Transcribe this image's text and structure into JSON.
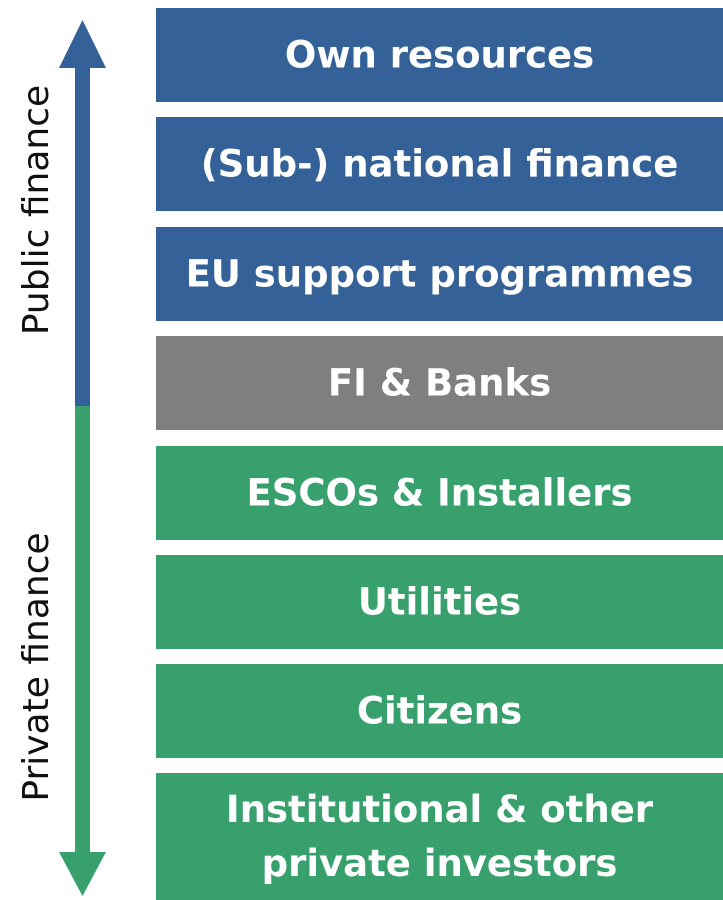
{
  "axis_labels": {
    "public": "Public finance",
    "private": "Private finance"
  },
  "boxes": [
    {
      "lines": [
        "Own resources"
      ]
    },
    {
      "lines": [
        "(Sub-) national finance"
      ]
    },
    {
      "lines": [
        "EU support programmes"
      ]
    },
    {
      "lines": [
        "FI & Banks"
      ]
    },
    {
      "lines": [
        "ESCOs & Installers"
      ]
    },
    {
      "lines": [
        "Utilities"
      ]
    },
    {
      "lines": [
        "Citizens"
      ]
    },
    {
      "lines": [
        "Institutional & other",
        "private investors"
      ]
    }
  ]
}
